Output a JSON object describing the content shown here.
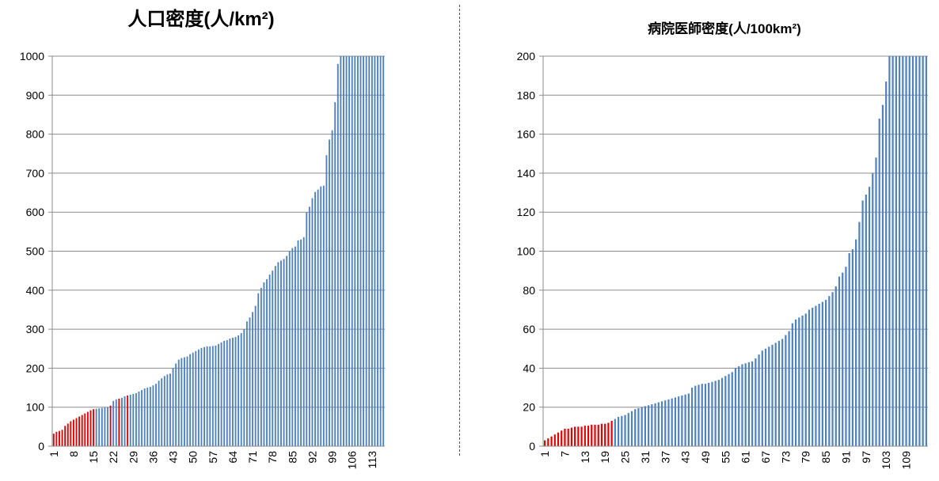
{
  "chart_data": [
    {
      "type": "bar",
      "title": "人口密度(人/km²)",
      "xlabel": "",
      "ylabel": "",
      "ylim": [
        0,
        1000
      ],
      "yticks": [
        0,
        100,
        200,
        300,
        400,
        500,
        600,
        700,
        800,
        900,
        1000
      ],
      "xtick_labels": [
        "1",
        "8",
        "15",
        "22",
        "29",
        "36",
        "43",
        "50",
        "57",
        "64",
        "71",
        "78",
        "85",
        "92",
        "99",
        "106",
        "113"
      ],
      "x_start": 1,
      "x_step": 7,
      "grid": true,
      "colors": {
        "default": "#4f81bd",
        "highlight": "#e00000"
      },
      "highlight_indices": [
        1,
        2,
        3,
        4,
        5,
        6,
        7,
        8,
        9,
        10,
        11,
        12,
        13,
        14,
        15,
        21,
        24,
        27
      ],
      "values": [
        32,
        37,
        39,
        42,
        52,
        58,
        64,
        68,
        72,
        76,
        80,
        84,
        88,
        92,
        95,
        96,
        97,
        98,
        99,
        100,
        104,
        116,
        120,
        122,
        124,
        128,
        130,
        132,
        134,
        136,
        140,
        144,
        148,
        150,
        152,
        156,
        160,
        168,
        174,
        180,
        184,
        186,
        200,
        212,
        222,
        226,
        228,
        230,
        236,
        240,
        244,
        248,
        252,
        254,
        256,
        256,
        257,
        258,
        262,
        266,
        270,
        272,
        276,
        278,
        280,
        284,
        290,
        300,
        320,
        330,
        344,
        360,
        392,
        406,
        420,
        428,
        440,
        450,
        462,
        472,
        476,
        480,
        488,
        500,
        508,
        512,
        528,
        530,
        536,
        600,
        614,
        636,
        652,
        658,
        666,
        668,
        746,
        786,
        810,
        882,
        980,
        1000,
        1000,
        1000,
        1000,
        1000,
        1000,
        1000,
        1000,
        1000,
        1000,
        1000,
        1000,
        1000,
        1000,
        1000,
        1000
      ]
    },
    {
      "type": "bar",
      "title": "病院医師密度(人/100km²)",
      "xlabel": "",
      "ylabel": "",
      "ylim": [
        0,
        200
      ],
      "yticks": [
        0,
        20,
        40,
        60,
        80,
        100,
        120,
        140,
        160,
        180,
        200
      ],
      "xtick_labels": [
        "1",
        "7",
        "13",
        "19",
        "25",
        "31",
        "37",
        "43",
        "49",
        "55",
        "61",
        "67",
        "73",
        "79",
        "85",
        "91",
        "97",
        "103",
        "109"
      ],
      "x_start": 1,
      "x_step": 6,
      "grid": true,
      "colors": {
        "default": "#4f81bd",
        "highlight": "#e00000"
      },
      "highlight_indices": [
        1,
        2,
        3,
        4,
        5,
        6,
        7,
        8,
        9,
        10,
        11,
        12,
        13,
        14,
        15,
        16,
        17,
        18,
        19,
        20,
        21
      ],
      "values": [
        3,
        4,
        5,
        6,
        7,
        8,
        9,
        9,
        9.5,
        10,
        10,
        10,
        10.5,
        10.5,
        11,
        11,
        11,
        11.5,
        11.5,
        12,
        13,
        14,
        15,
        15.5,
        16,
        17,
        18,
        19,
        19.5,
        20,
        20.5,
        21,
        21.5,
        22,
        22.5,
        23,
        23.5,
        24,
        24.5,
        25,
        25.5,
        26,
        26.5,
        27,
        30,
        31,
        31.5,
        32,
        32,
        32.5,
        33,
        33.5,
        34,
        35,
        36,
        37,
        38,
        40,
        41,
        42,
        42.5,
        43,
        43.5,
        45,
        47,
        49,
        50,
        51,
        52,
        53,
        54,
        55,
        57,
        59,
        63,
        65,
        66,
        67,
        68,
        70,
        71,
        72,
        73,
        74,
        75,
        77,
        79,
        82,
        87,
        89,
        92,
        99,
        101,
        106,
        115,
        126,
        129,
        133,
        140,
        148,
        168,
        175,
        187,
        200,
        200,
        200,
        200,
        200,
        200,
        200,
        200,
        200,
        200,
        200,
        200
      ]
    }
  ]
}
